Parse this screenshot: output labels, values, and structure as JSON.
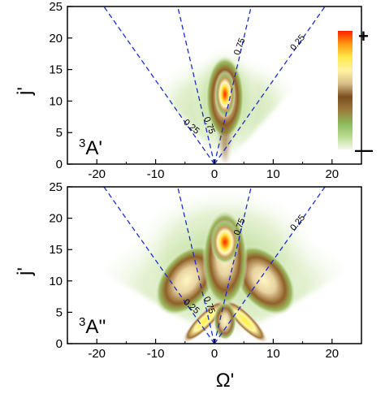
{
  "chart_data": [
    {
      "type": "heatmap",
      "panel": "top",
      "state_label_base": "A'",
      "state_label_sup": "3",
      "ylabel": "j'",
      "xlabel": "",
      "xlim": [
        -25,
        25
      ],
      "ylim": [
        0,
        25
      ],
      "xticks": [
        "-20",
        "-10",
        "0",
        "10",
        "20"
      ],
      "yticks": [
        "0",
        "5",
        "10",
        "15",
        "20",
        "25"
      ],
      "xtick_values": [
        -20,
        -10,
        0,
        10,
        20
      ],
      "ytick_values": [
        0,
        5,
        10,
        15,
        20,
        25
      ],
      "contour_lines": [
        {
          "label": "0.25",
          "slope": -1.33
        },
        {
          "label": "0.75",
          "slope": -4.0
        },
        {
          "label": "0.75",
          "slope": 4.0
        },
        {
          "label": "0.25",
          "slope": 1.33
        }
      ],
      "contour_label_positions": [
        {
          "text": "0.25",
          "x": -4.2,
          "y": 5.6
        },
        {
          "text": "0.75",
          "x": -1.3,
          "y": 6.0
        },
        {
          "text": "0.75",
          "x": 4.7,
          "y": 18.5
        },
        {
          "text": "0.25",
          "x": 14.5,
          "y": 19.0
        }
      ],
      "intensity_features": [
        {
          "x": 0,
          "y": 12,
          "strength": 1.0,
          "description_free": true
        }
      ]
    },
    {
      "type": "heatmap",
      "panel": "bottom",
      "state_label_base": "A''",
      "state_label_sup": "3",
      "ylabel": "j'",
      "xlabel": "Ω'",
      "xlim": [
        -25,
        25
      ],
      "ylim": [
        0,
        25
      ],
      "xticks": [
        "-20",
        "-10",
        "0",
        "10",
        "20"
      ],
      "yticks": [
        "0",
        "5",
        "10",
        "15",
        "20",
        "25"
      ],
      "xtick_values": [
        -20,
        -10,
        0,
        10,
        20
      ],
      "ytick_values": [
        0,
        5,
        10,
        15,
        20,
        25
      ],
      "contour_lines": [
        {
          "label": "0.25",
          "slope": -1.33
        },
        {
          "label": "0.75",
          "slope": -4.0
        },
        {
          "label": "0.75",
          "slope": 4.0
        },
        {
          "label": "0.25",
          "slope": 1.33
        }
      ],
      "contour_label_positions": [
        {
          "text": "0.25",
          "x": -4.2,
          "y": 5.6
        },
        {
          "text": "0.75",
          "x": -1.3,
          "y": 6.0
        },
        {
          "text": "0.75",
          "x": 4.7,
          "y": 18.5
        },
        {
          "text": "0.25",
          "x": 14.5,
          "y": 19.0
        }
      ]
    }
  ],
  "colorbar": {
    "max_label": "+",
    "min_label": "—",
    "stops": [
      "#f2f8ec",
      "#b8dc8e",
      "#8cb85a",
      "#9b7a3a",
      "#7a4e1e",
      "#d9c08a",
      "#fff2a0",
      "#ffe94a",
      "#ff9a10",
      "#ff2000"
    ]
  },
  "colors": {
    "contour_line": "#1a2ecc",
    "axis": "#000000"
  }
}
